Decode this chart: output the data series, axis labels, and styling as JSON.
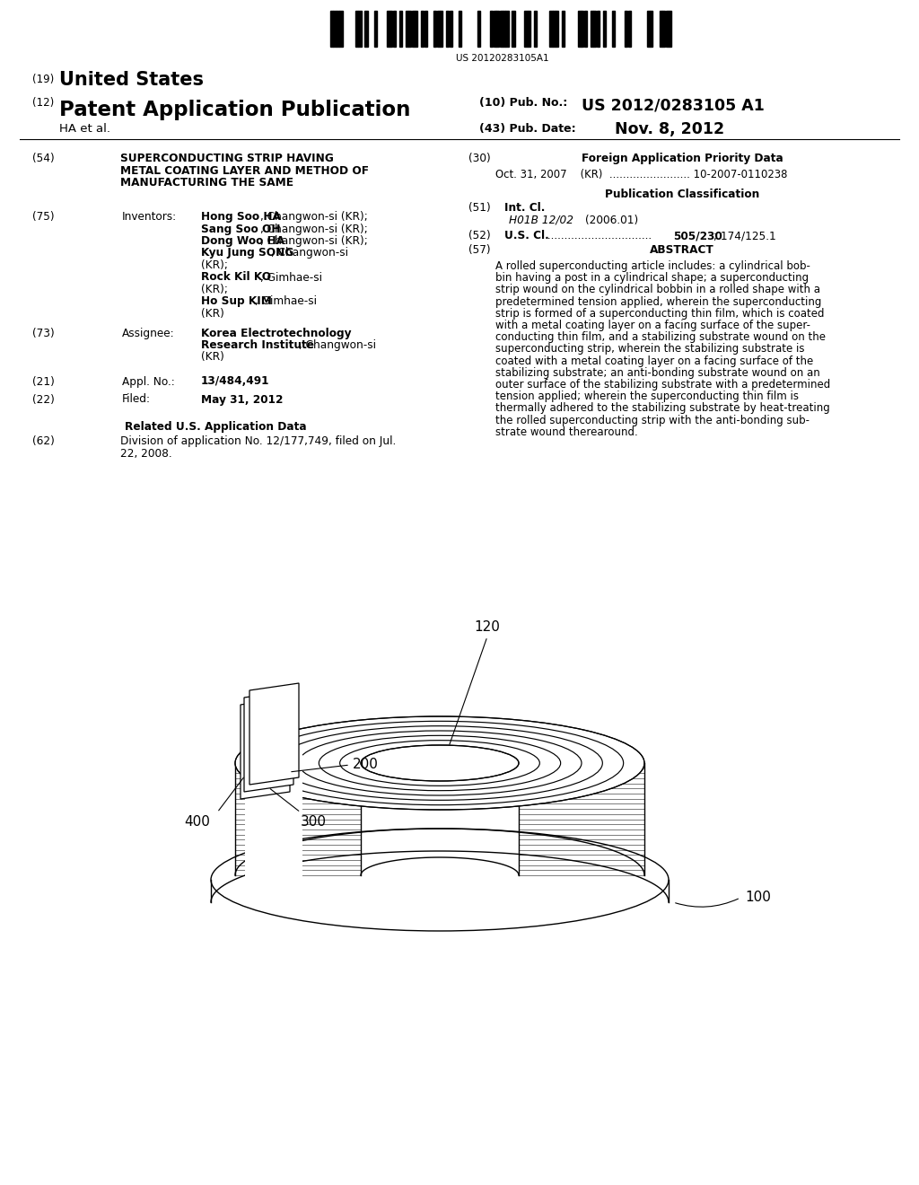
{
  "bg_color": "#ffffff",
  "barcode_text": "US 20120283105A1",
  "pub_no": "US 2012/0283105 A1",
  "pub_date": "Nov. 8, 2012",
  "field_54_lines": [
    "SUPERCONDUCTING STRIP HAVING",
    "METAL COATING LAYER AND METHOD OF",
    "MANUFACTURING THE SAME"
  ],
  "inventors": [
    [
      "Hong Soo HA",
      ", Changwon-si (KR);"
    ],
    [
      "Sang Soo OH",
      ", Changwon-si (KR);"
    ],
    [
      "Dong Woo HA",
      ", Changwon-si (KR);"
    ],
    [
      "Kyu Jung SONG",
      ", Changwon-si"
    ],
    [
      "",
      "(KR); "
    ],
    [
      "Rock Kil KO",
      ", Gimhae-si"
    ],
    [
      "",
      "(KR); "
    ],
    [
      "Ho Sup KIM",
      ", Gimhae-si"
    ],
    [
      "",
      "(KR)"
    ]
  ],
  "appl_no": "13/484,491",
  "filed": "May 31, 2012",
  "div62": [
    "Division of application No. 12/177,749, filed on Jul.",
    "22, 2008."
  ],
  "foreign_data": "Oct. 31, 2007    (KR)  ........................ 10-2007-0110238",
  "int_cl_value": "H01B 12/02",
  "int_cl_year": "(2006.01)",
  "abstract_lines": [
    "A rolled superconducting article includes: a cylindrical bob-",
    "bin having a post in a cylindrical shape; a superconducting",
    "strip wound on the cylindrical bobbin in a rolled shape with a",
    "predetermined tension applied, wherein the superconducting",
    "strip is formed of a superconducting thin film, which is coated",
    "with a metal coating layer on a facing surface of the super-",
    "conducting thin film, and a stabilizing substrate wound on the",
    "superconducting strip, wherein the stabilizing substrate is",
    "coated with a metal coating layer on a facing surface of the",
    "stabilizing substrate; an anti-bonding substrate wound on an",
    "outer surface of the stabilizing substrate with a predetermined",
    "tension applied; wherein the superconducting thin film is",
    "thermally adhered to the stabilizing substrate by heat-treating",
    "the rolled superconducting strip with the anti-bonding sub-",
    "strate wound therearound."
  ]
}
